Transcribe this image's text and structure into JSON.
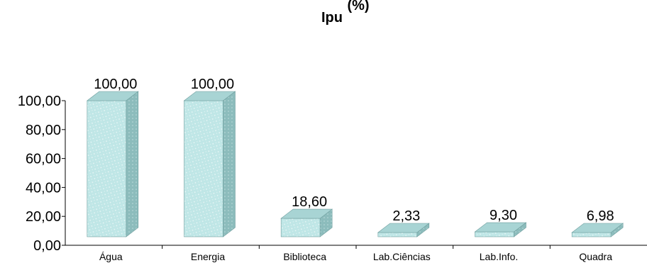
{
  "chart_data": {
    "type": "bar",
    "title_lines": [
      "(%)",
      "Ipu"
    ],
    "categories": [
      "Água",
      "Energia",
      "Biblioteca",
      "Lab.Ciências",
      "Lab.Info.",
      "Quadra"
    ],
    "values": [
      100.0,
      100.0,
      18.6,
      2.33,
      9.3,
      6.98
    ],
    "value_labels": [
      "100,00",
      "100,00",
      "18,60",
      "2,33",
      "9,30",
      "6,98"
    ],
    "y_ticks": [
      "0,00",
      "20,00",
      "40,00",
      "60,00",
      "80,00",
      "100,00"
    ],
    "ylim": [
      0,
      100
    ],
    "grid": false,
    "legend": "none",
    "style": "3d-column",
    "colors": {
      "front": "#bfe6e6",
      "top": "#a8d4d4",
      "side": "#8cbcbc",
      "texture": "#ffffff",
      "edge": "#6f9e9e",
      "axis": "#000000"
    }
  }
}
